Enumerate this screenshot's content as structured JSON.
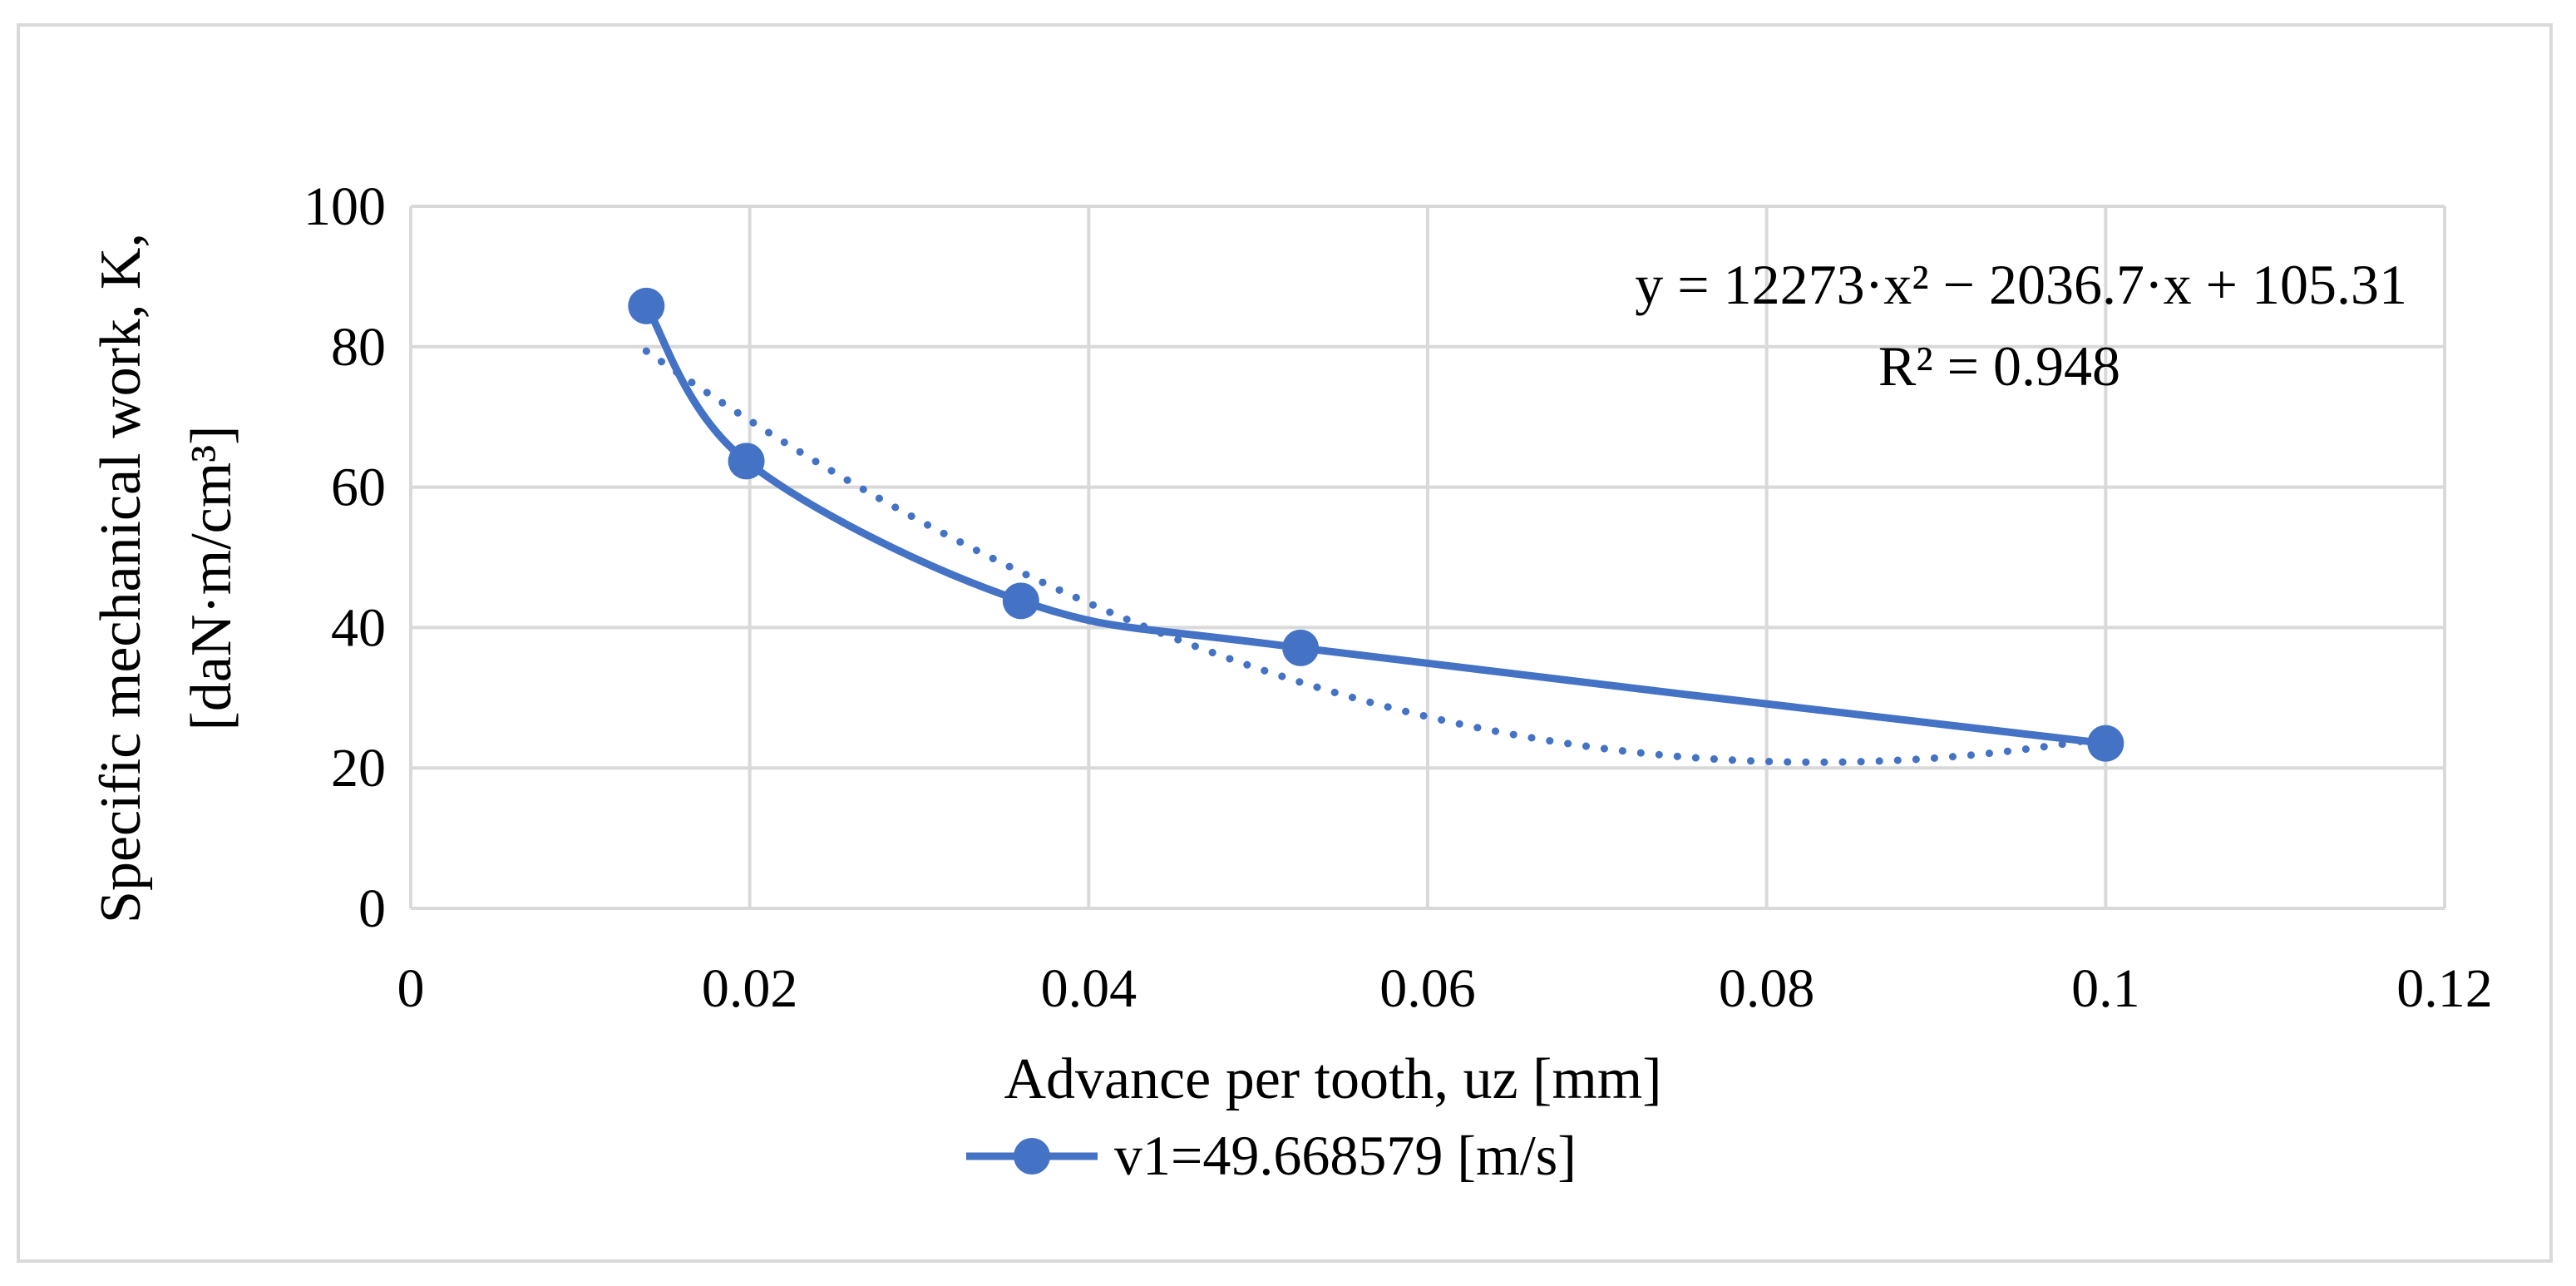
{
  "chart_data": {
    "type": "scatter",
    "title": "",
    "xlabel": "Advance per tooth, uz [mm]",
    "ylabel_line1": "Specific mechanical work, K,",
    "ylabel_line2": "[daN·m/cm³]",
    "xlim": [
      0,
      0.12
    ],
    "ylim": [
      0,
      100
    ],
    "x_ticks": [
      0,
      0.02,
      0.04,
      0.06,
      0.08,
      0.1,
      0.12
    ],
    "x_tick_labels": [
      "0",
      "0.02",
      "0.04",
      "0.06",
      "0.08",
      "0.1",
      "0.12"
    ],
    "y_ticks": [
      0,
      20,
      40,
      60,
      80,
      100
    ],
    "y_tick_labels": [
      "0",
      "20",
      "40",
      "60",
      "80",
      "100"
    ],
    "grid": true,
    "series": [
      {
        "name": "v1=49.668579 [m/s]",
        "x": [
          0.0139,
          0.0198,
          0.036,
          0.0525,
          0.1
        ],
        "y": [
          85.8,
          63.7,
          43.8,
          37.1,
          23.5
        ],
        "color": "#4472c4",
        "marker": "circle",
        "line": "smooth"
      }
    ],
    "trendline": {
      "type": "polynomial",
      "order": 2,
      "coefficients": [
        12273,
        -2036.7,
        105.31
      ],
      "x_range": [
        0.0139,
        0.1
      ],
      "style": "dotted",
      "color": "#4472c4"
    },
    "annotations": {
      "equation": "y = 12273·x² − 2036.7·x + 105.31",
      "r_squared": "R² = 0.948"
    },
    "legend": {
      "position": "bottom",
      "label": "v1=49.668579 [m/s]"
    }
  }
}
